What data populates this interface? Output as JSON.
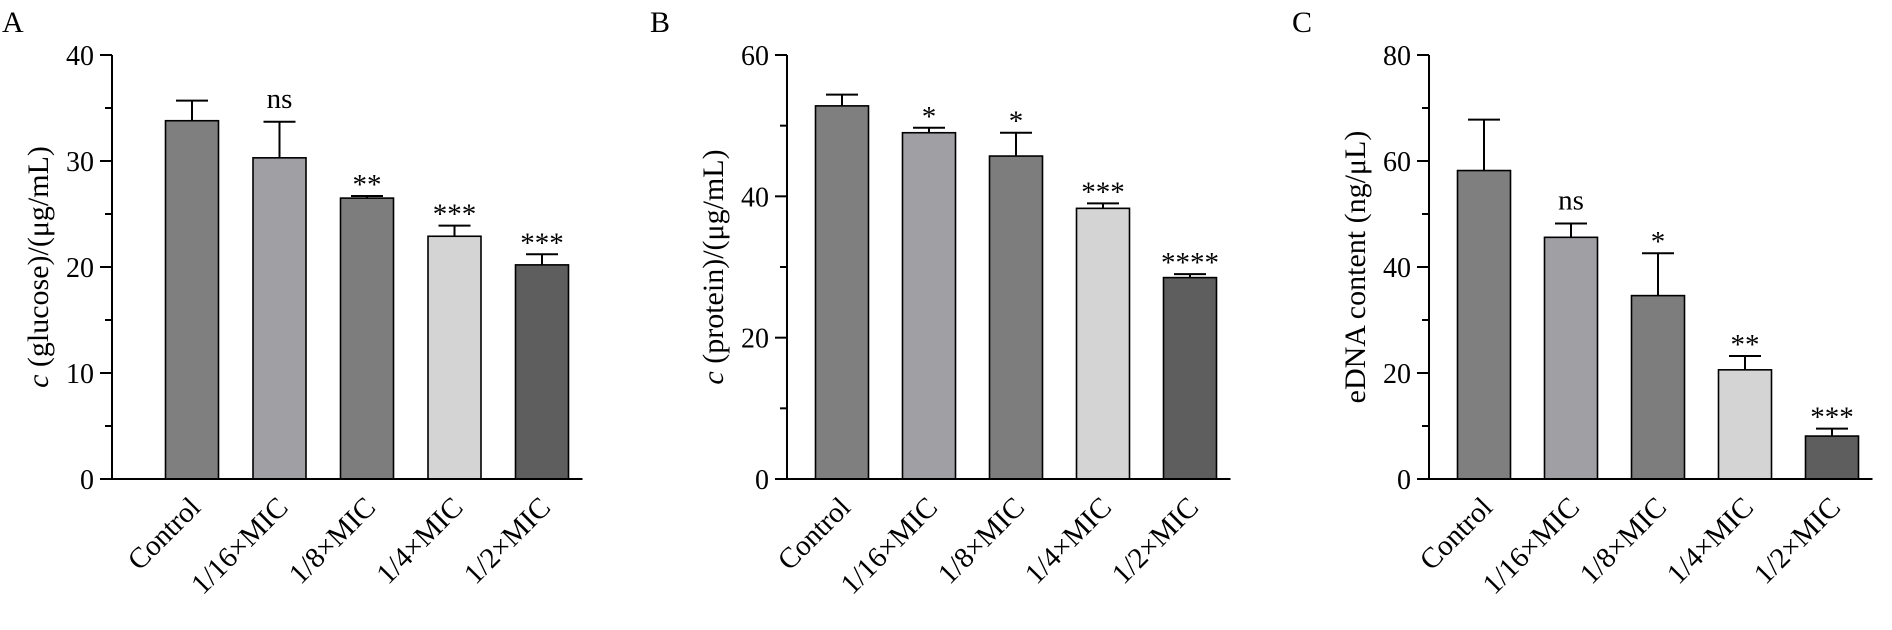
{
  "chart_data": [
    {
      "panel": "A",
      "type": "bar",
      "ylabel_var": "c",
      "ylabel_rest": " (glucose)/(μg/mL)",
      "categories": [
        "Control",
        "1/16×MIC",
        "1/8×MIC",
        "1/4×MIC",
        "1/2×MIC"
      ],
      "values": [
        33.8,
        30.3,
        26.5,
        22.9,
        20.2
      ],
      "errors": [
        1.9,
        3.4,
        0.2,
        1.0,
        1.0
      ],
      "significance": [
        "",
        "ns",
        "**",
        "***",
        "***"
      ],
      "ylim": [
        0,
        40
      ],
      "yticks": [
        0,
        10,
        20,
        30,
        40
      ],
      "bar_colors": [
        "#7f7f7f",
        "#a09fa4",
        "#7d7d7d",
        "#d4d4d4",
        "#5e5e5e"
      ]
    },
    {
      "panel": "B",
      "type": "bar",
      "ylabel_var": "c",
      "ylabel_rest": " (protein)/(μg/mL)",
      "categories": [
        "Control",
        "1/16×MIC",
        "1/8×MIC",
        "1/4×MIC",
        "1/2×MIC"
      ],
      "values": [
        52.8,
        49.0,
        45.7,
        38.3,
        28.5
      ],
      "errors": [
        1.6,
        0.7,
        3.3,
        0.7,
        0.5
      ],
      "significance": [
        "",
        "*",
        "*",
        "***",
        "****"
      ],
      "ylim": [
        0,
        60
      ],
      "yticks": [
        0,
        20,
        40,
        60
      ],
      "bar_colors": [
        "#7f7f7f",
        "#a09fa4",
        "#7d7d7d",
        "#d4d4d4",
        "#5e5e5e"
      ]
    },
    {
      "panel": "C",
      "type": "bar",
      "ylabel_var": "",
      "ylabel_rest": "eDNA content (ng/μL)",
      "categories": [
        "Control",
        "1/16×MIC",
        "1/8×MIC",
        "1/4×MIC",
        "1/2×MIC"
      ],
      "values": [
        58.2,
        45.6,
        34.6,
        20.6,
        8.1
      ],
      "errors": [
        9.6,
        2.6,
        8.0,
        2.6,
        1.4
      ],
      "significance": [
        "",
        "ns",
        "*",
        "**",
        "***"
      ],
      "ylim": [
        0,
        80
      ],
      "yticks": [
        0,
        20,
        40,
        60,
        80
      ],
      "bar_colors": [
        "#7f7f7f",
        "#a09fa4",
        "#7d7d7d",
        "#d4d4d4",
        "#5e5e5e"
      ]
    }
  ]
}
